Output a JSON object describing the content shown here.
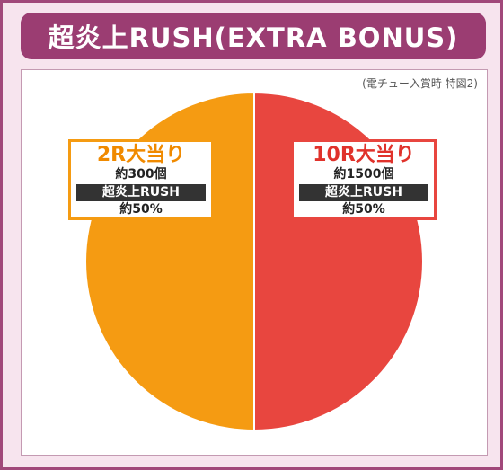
{
  "header": {
    "title": "超炎上RUSH(EXTRA BONUS)"
  },
  "note": "(電チュー入賞時 特図2)",
  "colors": {
    "orange": "#f59b12",
    "red": "#e8463f",
    "frame": "#a1487a",
    "title_bg": "#9b3d72"
  },
  "chart_data": {
    "type": "pie",
    "title": "超炎上RUSH(EXTRA BONUS)",
    "slices": [
      {
        "label": "10R大当り",
        "sub": "約1500個",
        "mode": "超炎上RUSH",
        "rate": "約50%",
        "value": 50,
        "color": "#e8463f"
      },
      {
        "label": "2R大当り",
        "sub": "約300個",
        "mode": "超炎上RUSH",
        "rate": "約50%",
        "value": 50,
        "color": "#f59b12"
      }
    ]
  }
}
